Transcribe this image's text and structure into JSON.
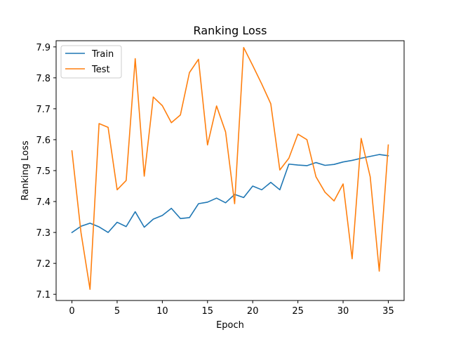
{
  "chart_data": {
    "type": "line",
    "title": "Ranking Loss",
    "xlabel": "Epoch",
    "ylabel": "Ranking Loss",
    "xlim": [
      -1.75,
      36.75
    ],
    "ylim": [
      7.08,
      7.92
    ],
    "xticks": [
      0,
      5,
      10,
      15,
      20,
      25,
      30,
      35
    ],
    "yticks": [
      7.1,
      7.2,
      7.3,
      7.4,
      7.5,
      7.6,
      7.7,
      7.8,
      7.9
    ],
    "x": [
      0,
      1,
      2,
      3,
      4,
      5,
      6,
      7,
      8,
      9,
      10,
      11,
      12,
      13,
      14,
      15,
      16,
      17,
      18,
      19,
      20,
      21,
      22,
      23,
      24,
      25,
      26,
      27,
      28,
      29,
      30,
      31,
      32,
      33,
      34,
      35
    ],
    "grid": false,
    "legend_position": "top-left",
    "series": [
      {
        "name": "Train",
        "color": "#1f77b4",
        "values": [
          7.3,
          7.32,
          7.33,
          7.318,
          7.3,
          7.333,
          7.319,
          7.367,
          7.317,
          7.343,
          7.355,
          7.378,
          7.345,
          7.348,
          7.393,
          7.398,
          7.411,
          7.396,
          7.423,
          7.413,
          7.45,
          7.438,
          7.462,
          7.438,
          7.521,
          7.518,
          7.516,
          7.526,
          7.517,
          7.52,
          7.528,
          7.533,
          7.54,
          7.546,
          7.552,
          7.548
        ]
      },
      {
        "name": "Test",
        "color": "#ff7f0e",
        "values": [
          7.564,
          7.3,
          7.116,
          7.652,
          7.64,
          7.438,
          7.468,
          7.862,
          7.482,
          7.738,
          7.71,
          7.655,
          7.68,
          7.817,
          7.86,
          7.583,
          7.709,
          7.625,
          7.393,
          7.898,
          7.84,
          7.78,
          7.716,
          7.502,
          7.54,
          7.618,
          7.6,
          7.48,
          7.43,
          7.402,
          7.457,
          7.215,
          7.604,
          7.48,
          7.175,
          7.583
        ]
      }
    ]
  }
}
